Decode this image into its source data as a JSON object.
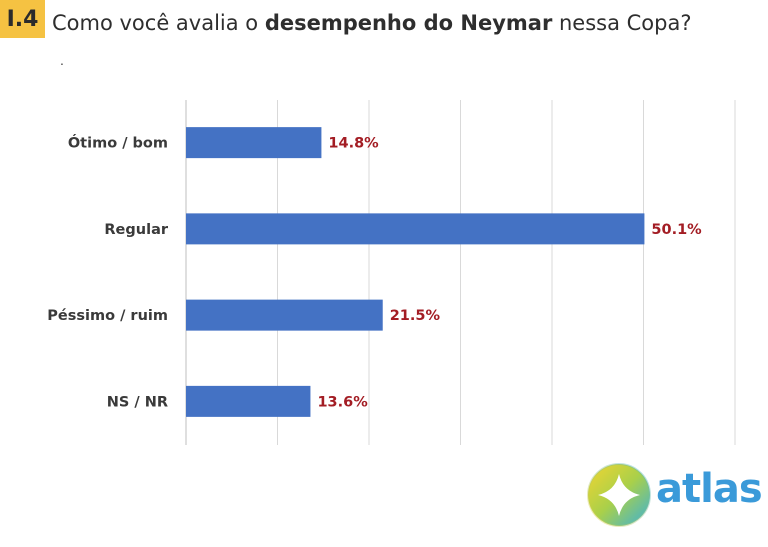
{
  "header": {
    "badge": "I.4",
    "title_prefix": "Como você avalia o ",
    "title_bold": "desempenho do Neymar",
    "title_suffix": " nessa Copa?",
    "note": "."
  },
  "chart_data": {
    "type": "bar",
    "orientation": "horizontal",
    "categories": [
      "Ótimo / bom",
      "Regular",
      "Péssimo / ruim",
      "NS / NR"
    ],
    "values": [
      14.8,
      50.1,
      21.5,
      13.6
    ],
    "value_labels": [
      "14.8%",
      "50.1%",
      "21.5%",
      "13.6%"
    ],
    "xlim": [
      0,
      60
    ],
    "grid": true,
    "bar_color": "#4472c4",
    "label_color": "#a31d24"
  },
  "logo": {
    "text": "atlas",
    "icon": "atlas-logo-icon"
  }
}
